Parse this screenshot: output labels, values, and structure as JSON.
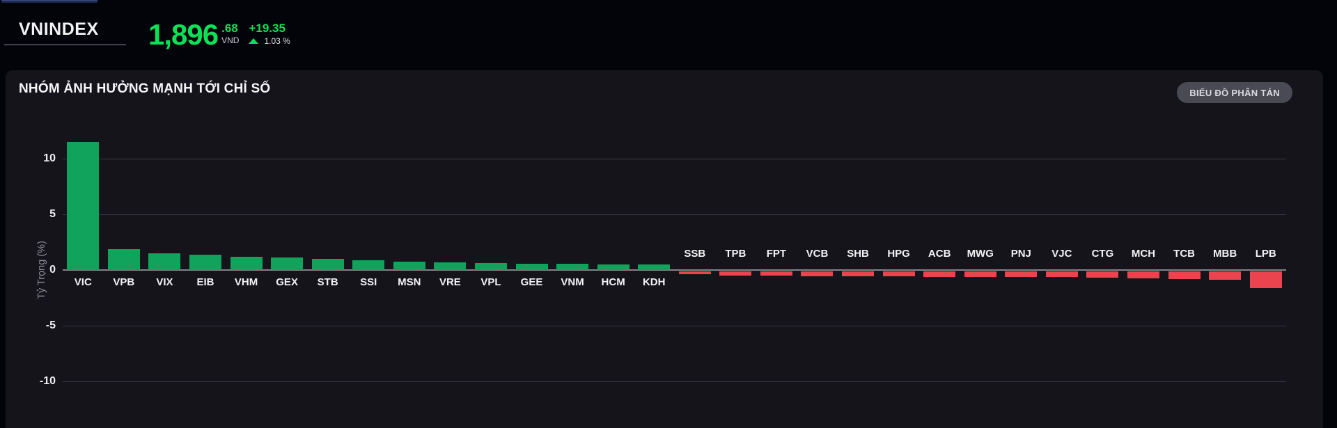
{
  "header": {
    "index_name": "VNINDEX",
    "price_int": "1,896",
    "price_dec": ".68",
    "currency": "VND",
    "change": "+19.35",
    "change_pct": "1.03 %",
    "up_color": "#0be157"
  },
  "panel": {
    "title": "NHÓM ẢNH HƯỞNG MẠNH TỚI CHỈ SỐ",
    "scatter_button_label": "BIỂU ĐỒ PHÂN TÁN"
  },
  "chart_data": {
    "type": "bar",
    "title": "NHÓM ẢNH HƯỞNG MẠNH TỚI CHỈ SỐ",
    "xlabel": "",
    "ylabel": "Tỷ Trọng (%)",
    "yticks": [
      10,
      5,
      0,
      -5,
      -10
    ],
    "ylim": [
      -11.5,
      12
    ],
    "grid": "horizontal",
    "legend": "none",
    "positive_color": "#11a35c",
    "negative_color": "#eb444e",
    "categories": [
      "VIC",
      "VPB",
      "VIX",
      "EIB",
      "VHM",
      "GEX",
      "STB",
      "SSI",
      "MSN",
      "VRE",
      "VPL",
      "GEE",
      "VNM",
      "HCM",
      "KDH",
      "SSB",
      "TPB",
      "FPT",
      "VCB",
      "SHB",
      "HPG",
      "ACB",
      "MWG",
      "PNJ",
      "VJC",
      "CTG",
      "MCH",
      "TCB",
      "MBB",
      "LPB"
    ],
    "values": [
      11.5,
      1.85,
      1.5,
      1.4,
      1.2,
      1.1,
      1.0,
      0.9,
      0.75,
      0.7,
      0.6,
      0.55,
      0.55,
      0.5,
      0.5,
      -0.25,
      -0.35,
      -0.4,
      -0.45,
      -0.45,
      -0.45,
      -0.5,
      -0.5,
      -0.5,
      -0.5,
      -0.55,
      -0.6,
      -0.7,
      -0.75,
      -1.5
    ]
  }
}
